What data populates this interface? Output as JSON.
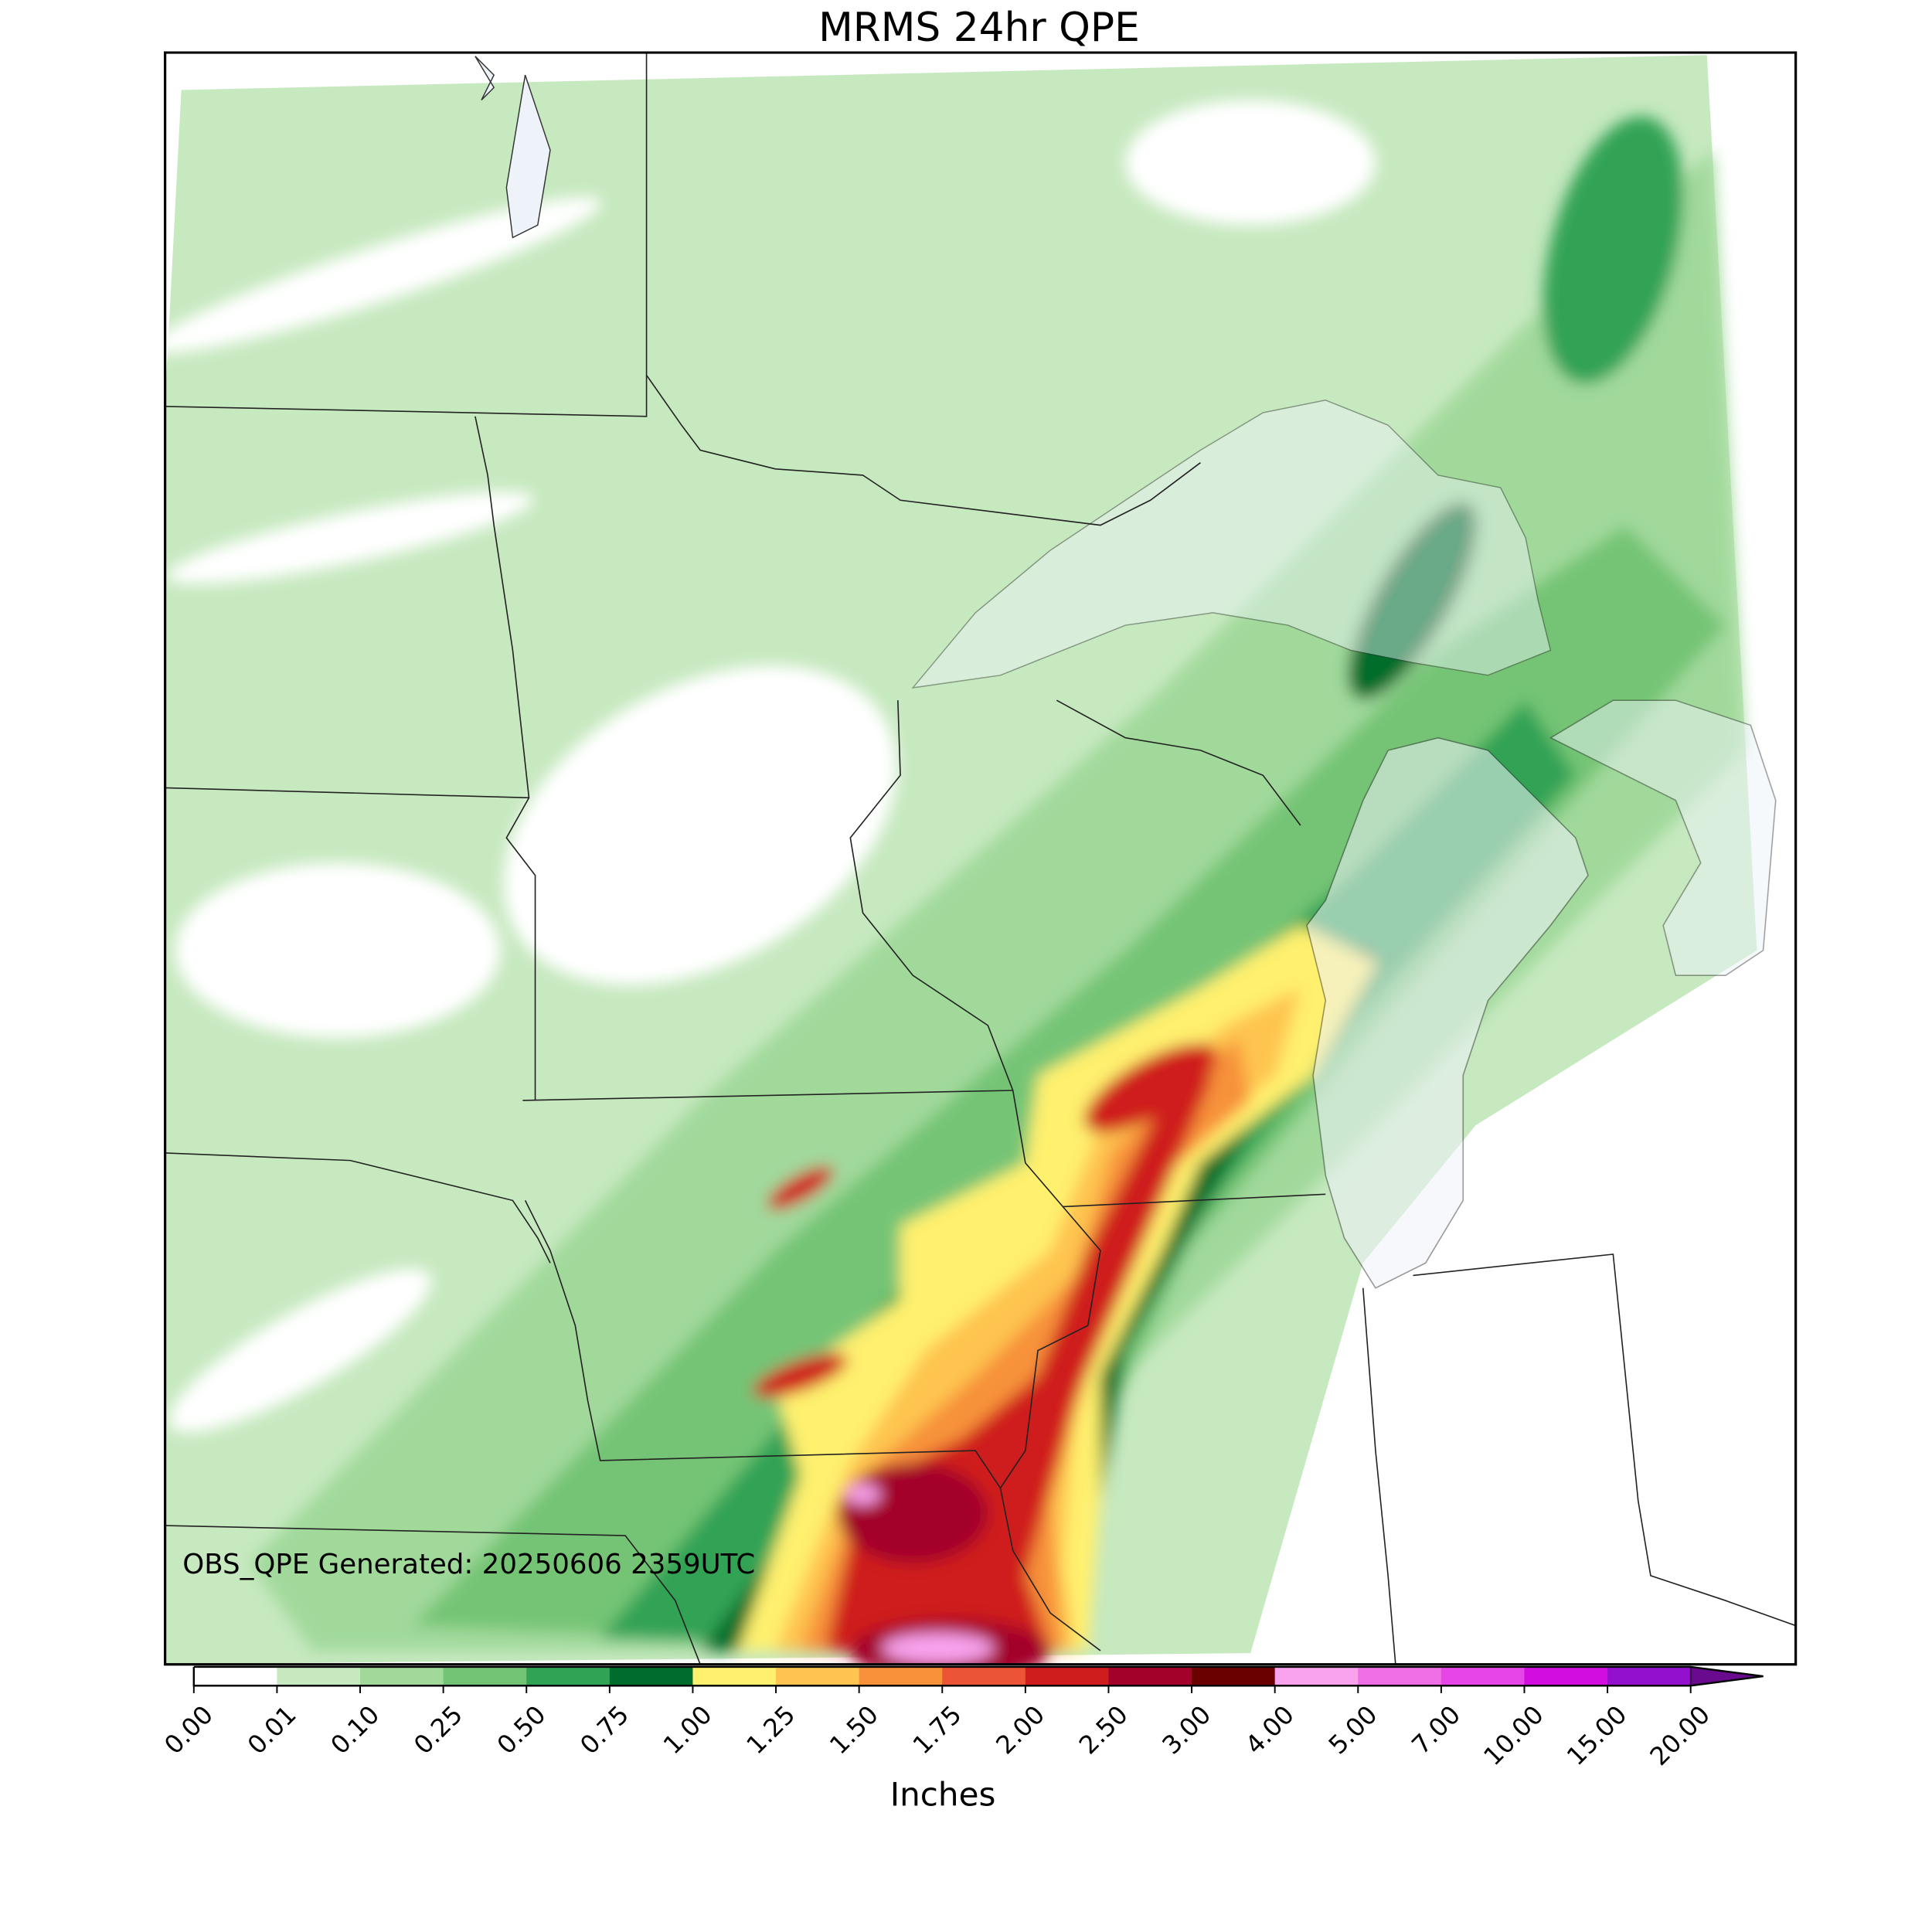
{
  "title": "MRMS 24hr QPE",
  "annotation": "OBS_QPE Generated: 20250606 2359UTC",
  "colorbar": {
    "label": "Inches",
    "extend": "max",
    "ticks": [
      {
        "value": 0,
        "label": "0.00"
      },
      {
        "value": 0.01,
        "label": "0.01"
      },
      {
        "value": 0.1,
        "label": "0.10"
      },
      {
        "value": 0.25,
        "label": "0.25"
      },
      {
        "value": 0.5,
        "label": "0.50"
      },
      {
        "value": 0.75,
        "label": "0.75"
      },
      {
        "value": 1,
        "label": "1.00"
      },
      {
        "value": 1.25,
        "label": "1.25"
      },
      {
        "value": 1.5,
        "label": "1.50"
      },
      {
        "value": 1.75,
        "label": "1.75"
      },
      {
        "value": 2,
        "label": "2.00"
      },
      {
        "value": 2.5,
        "label": "2.50"
      },
      {
        "value": 3,
        "label": "3.00"
      },
      {
        "value": 4,
        "label": "4.00"
      },
      {
        "value": 5,
        "label": "5.00"
      },
      {
        "value": 7,
        "label": "7.00"
      },
      {
        "value": 10,
        "label": "10.00"
      },
      {
        "value": 15,
        "label": "15.00"
      },
      {
        "value": 20,
        "label": "20.00"
      }
    ],
    "colors": [
      "#ffffff",
      "#c7e9c0",
      "#a1d99b",
      "#74c476",
      "#31a354",
      "#006d2c",
      "#fff06e",
      "#fec44f",
      "#f7923a",
      "#eb5434",
      "#cf1c1c",
      "#a3002a",
      "#6b0000",
      "#f9a3ef",
      "#f06ee6",
      "#e645e8",
      "#d20de0",
      "#9410cf"
    ],
    "over_color": "#6a0a8f"
  }
}
